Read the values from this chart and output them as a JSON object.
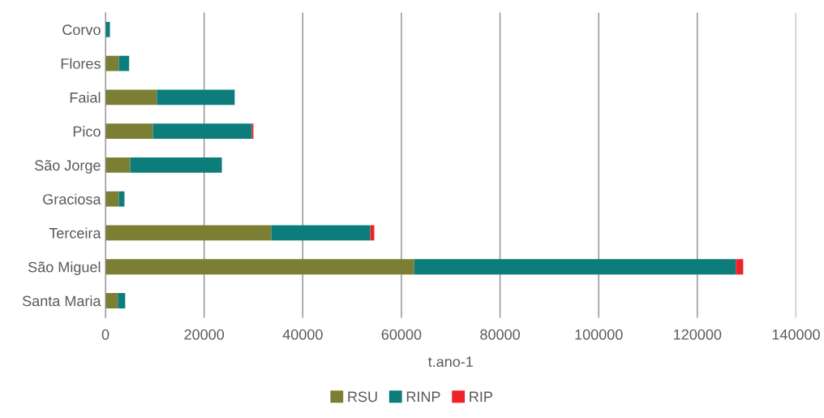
{
  "chart_data": {
    "type": "bar",
    "orientation": "horizontal",
    "stacked": true,
    "categories": [
      "Corvo",
      "Flores",
      "Faial",
      "Pico",
      "São Jorge",
      "Graciosa",
      "Terceira",
      "São Miguel",
      "Santa Maria"
    ],
    "series": [
      {
        "name": "RSU",
        "color": "#7c7f33",
        "values": [
          null,
          2700,
          10400,
          9600,
          5000,
          2700,
          33600,
          62600,
          2500
        ]
      },
      {
        "name": "RINP",
        "color": "#0d7d7b",
        "values": [
          900,
          2100,
          15800,
          20100,
          18600,
          1150,
          20100,
          65200,
          1500
        ]
      },
      {
        "name": "RIP",
        "color": "#ee2328",
        "values": [
          null,
          null,
          null,
          300,
          null,
          null,
          800,
          1500,
          null
        ]
      }
    ],
    "xlabel": "t.ano-1",
    "xlim": [
      0,
      140000
    ],
    "xticks": [
      0,
      20000,
      40000,
      60000,
      80000,
      100000,
      120000,
      140000
    ],
    "grid": "x",
    "legend": "bottom"
  }
}
